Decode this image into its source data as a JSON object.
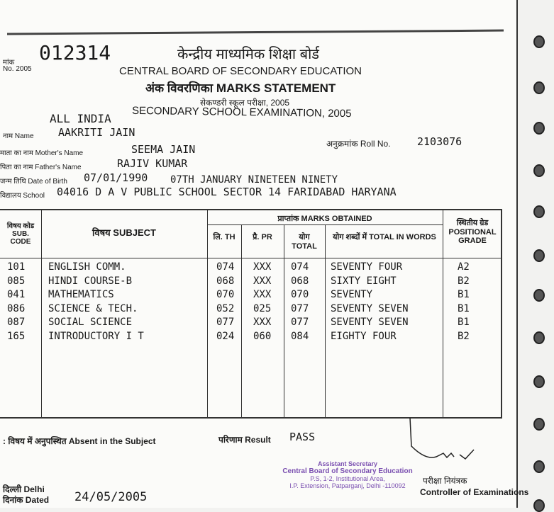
{
  "serial": {
    "label_hi": "मांक",
    "label_en": "No. 2005",
    "value": "012314"
  },
  "header": {
    "board_hi": "केन्द्रीय माध्यमिक शिक्षा बोर्ड",
    "board_en": "CENTRAL BOARD OF SECONDARY EDUCATION",
    "statement": "अंक विवरणिका MARKS STATEMENT",
    "exam_hi": "सेकण्डरी स्कूल परीक्षा, 2005",
    "scope": "ALL INDIA",
    "exam_en": "SECONDARY SCHOOL EXAMINATION, 2005"
  },
  "student": {
    "name_label": "नाम Name",
    "name": "AAKRITI JAIN",
    "roll_label": "अनुक्रमांक Roll No.",
    "roll": "2103076",
    "mother_label": "माता का नाम Mother's Name",
    "mother": "SEEMA JAIN",
    "father_label": "पिता का नाम Father's Name",
    "father": "RAJIV KUMAR",
    "dob_label": "जन्म तिथि Date of Birth",
    "dob": "07/01/1990",
    "dob_words": "07TH JANUARY NINETEEN NINETY",
    "school_label": "विद्यालय School",
    "school": "04016 D A V PUBLIC SCHOOL SECTOR 14 FARIDABAD HARYANA"
  },
  "table": {
    "headers": {
      "code": "विषय कोड SUB. CODE",
      "subject": "विषय SUBJECT",
      "marks": "प्राप्तांक  MARKS OBTAINED",
      "th": "लि. TH",
      "pr": "प्रै. PR",
      "total": "योग TOTAL",
      "words": "योग शब्दों में TOTAL IN WORDS",
      "grade": "स्थितीय ग्रेड POSITIONAL GRADE"
    },
    "rows": [
      {
        "code": "101",
        "subject": "ENGLISH COMM.",
        "th": "074",
        "pr": "XXX",
        "total": "074",
        "words": "SEVENTY FOUR",
        "grade": "A2"
      },
      {
        "code": "085",
        "subject": "HINDI COURSE-B",
        "th": "068",
        "pr": "XXX",
        "total": "068",
        "words": "SIXTY EIGHT",
        "grade": "B2"
      },
      {
        "code": "041",
        "subject": "MATHEMATICS",
        "th": "070",
        "pr": "XXX",
        "total": "070",
        "words": "SEVENTY",
        "grade": "B1"
      },
      {
        "code": "086",
        "subject": "SCIENCE & TECH.",
        "th": "052",
        "pr": "025",
        "total": "077",
        "words": "SEVENTY SEVEN",
        "grade": "B1"
      },
      {
        "code": "087",
        "subject": "SOCIAL SCIENCE",
        "th": "077",
        "pr": "XXX",
        "total": "077",
        "words": "SEVENTY SEVEN",
        "grade": "B1"
      },
      {
        "code": "165",
        "subject": "INTRODUCTORY I T",
        "th": "024",
        "pr": "060",
        "total": "084",
        "words": "EIGHTY FOUR",
        "grade": "B2"
      }
    ]
  },
  "footer": {
    "absent_note": ": विषय में अनुपस्थित Absent in the Subject",
    "result_label": "परिणाम Result",
    "result": "PASS",
    "place": "दिल्ली Delhi",
    "dated_label": "दिनांक Dated",
    "date": "24/05/2005",
    "stamp": [
      "Assistant Secretary",
      "Central Board  of Secondary Education",
      "P.S, 1-2, Institutional Area,",
      "I.P. Extension, Patparganj, Delhi -110092"
    ],
    "controller_hi": "परीक्षा नियंत्रक",
    "controller_en": "Controller of Examinations"
  }
}
